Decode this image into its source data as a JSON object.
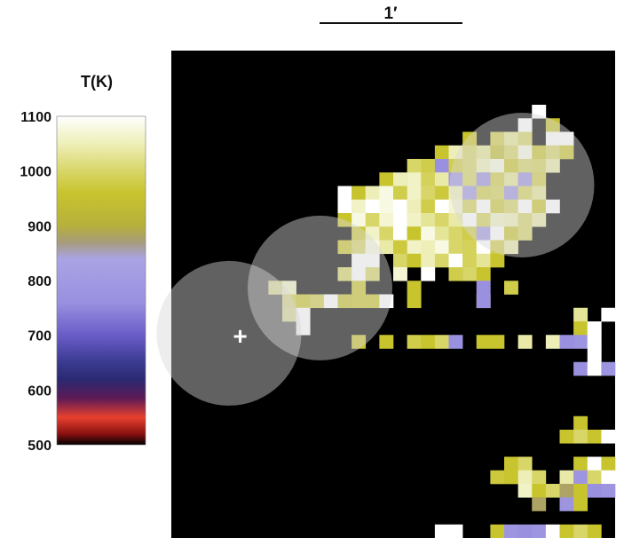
{
  "chart_data": {
    "type": "heatmap",
    "colorbar": {
      "title": "T(K)",
      "range": [
        500,
        1100
      ],
      "ticks": [
        500,
        600,
        700,
        800,
        900,
        1000,
        1100
      ],
      "stops": [
        {
          "value": 500,
          "color": "#000000"
        },
        {
          "value": 520,
          "color": "#8a1010"
        },
        {
          "value": 550,
          "color": "#e8402e"
        },
        {
          "value": 585,
          "color": "#5c1a55"
        },
        {
          "value": 620,
          "color": "#2a2a72"
        },
        {
          "value": 650,
          "color": "#3a3a90"
        },
        {
          "value": 700,
          "color": "#6a5cc8"
        },
        {
          "value": 760,
          "color": "#9a90e0"
        },
        {
          "value": 840,
          "color": "#a9a4e4"
        },
        {
          "value": 870,
          "color": "#a89c7a"
        },
        {
          "value": 900,
          "color": "#b6b03c"
        },
        {
          "value": 960,
          "color": "#c8c42e"
        },
        {
          "value": 1000,
          "color": "#d8d668"
        },
        {
          "value": 1050,
          "color": "#eeefb8"
        },
        {
          "value": 1100,
          "color": "#ffffff"
        }
      ]
    },
    "scale_bar": {
      "label": "1′"
    },
    "grid": {
      "cols": 32,
      "rows": 36
    },
    "background": "#000000",
    "cells": [
      [
        26,
        4,
        1100
      ],
      [
        25,
        5,
        1100
      ],
      [
        27,
        5,
        950
      ],
      [
        21,
        6,
        960
      ],
      [
        23,
        6,
        980
      ],
      [
        24,
        6,
        1030
      ],
      [
        25,
        6,
        1000
      ],
      [
        27,
        6,
        1100
      ],
      [
        28,
        6,
        1100
      ],
      [
        19,
        7,
        960
      ],
      [
        20,
        7,
        1050
      ],
      [
        21,
        7,
        1000
      ],
      [
        22,
        7,
        1030
      ],
      [
        23,
        7,
        940
      ],
      [
        24,
        7,
        1000
      ],
      [
        25,
        7,
        1080
      ],
      [
        26,
        7,
        960
      ],
      [
        27,
        7,
        1000
      ],
      [
        28,
        7,
        960
      ],
      [
        17,
        8,
        1000
      ],
      [
        18,
        8,
        980
      ],
      [
        19,
        8,
        760
      ],
      [
        20,
        8,
        980
      ],
      [
        21,
        8,
        1000
      ],
      [
        22,
        8,
        1050
      ],
      [
        23,
        8,
        1080
      ],
      [
        24,
        8,
        960
      ],
      [
        25,
        8,
        1000
      ],
      [
        26,
        8,
        990
      ],
      [
        27,
        8,
        1040
      ],
      [
        15,
        9,
        960
      ],
      [
        16,
        9,
        1050
      ],
      [
        17,
        9,
        1060
      ],
      [
        18,
        9,
        990
      ],
      [
        19,
        9,
        1040
      ],
      [
        20,
        9,
        780
      ],
      [
        21,
        9,
        1000
      ],
      [
        22,
        9,
        760
      ],
      [
        23,
        9,
        980
      ],
      [
        24,
        9,
        1030
      ],
      [
        25,
        9,
        760
      ],
      [
        26,
        9,
        980
      ],
      [
        12,
        10,
        1100
      ],
      [
        13,
        10,
        960
      ],
      [
        14,
        10,
        1050
      ],
      [
        15,
        10,
        1080
      ],
      [
        16,
        10,
        980
      ],
      [
        17,
        10,
        1060
      ],
      [
        18,
        10,
        1000
      ],
      [
        19,
        10,
        970
      ],
      [
        20,
        10,
        1050
      ],
      [
        21,
        10,
        800
      ],
      [
        22,
        10,
        980
      ],
      [
        23,
        10,
        990
      ],
      [
        24,
        10,
        780
      ],
      [
        25,
        10,
        990
      ],
      [
        26,
        10,
        1030
      ],
      [
        12,
        11,
        1100
      ],
      [
        13,
        11,
        1060
      ],
      [
        14,
        11,
        1100
      ],
      [
        15,
        11,
        1080
      ],
      [
        16,
        11,
        1100
      ],
      [
        17,
        11,
        1050
      ],
      [
        18,
        11,
        980
      ],
      [
        19,
        11,
        1100
      ],
      [
        20,
        11,
        1070
      ],
      [
        21,
        11,
        990
      ],
      [
        22,
        11,
        1100
      ],
      [
        23,
        11,
        970
      ],
      [
        24,
        11,
        1000
      ],
      [
        25,
        11,
        1100
      ],
      [
        26,
        11,
        960
      ],
      [
        27,
        11,
        1100
      ],
      [
        12,
        12,
        960
      ],
      [
        13,
        12,
        1080
      ],
      [
        14,
        12,
        1000
      ],
      [
        15,
        12,
        1070
      ],
      [
        16,
        12,
        1100
      ],
      [
        17,
        12,
        1060
      ],
      [
        18,
        12,
        1030
      ],
      [
        19,
        12,
        1000
      ],
      [
        20,
        12,
        1040
      ],
      [
        21,
        12,
        1100
      ],
      [
        22,
        12,
        990
      ],
      [
        23,
        12,
        1060
      ],
      [
        24,
        12,
        1050
      ],
      [
        25,
        12,
        1000
      ],
      [
        26,
        12,
        1040
      ],
      [
        13,
        13,
        970
      ],
      [
        14,
        13,
        1060
      ],
      [
        15,
        13,
        1000
      ],
      [
        16,
        13,
        1100
      ],
      [
        17,
        13,
        960
      ],
      [
        18,
        13,
        1080
      ],
      [
        19,
        13,
        1030
      ],
      [
        20,
        13,
        1000
      ],
      [
        21,
        13,
        980
      ],
      [
        22,
        13,
        800
      ],
      [
        23,
        13,
        1100
      ],
      [
        24,
        13,
        960
      ],
      [
        25,
        13,
        1000
      ],
      [
        12,
        14,
        960
      ],
      [
        13,
        14,
        1000
      ],
      [
        14,
        14,
        1080
      ],
      [
        15,
        14,
        1040
      ],
      [
        16,
        14,
        970
      ],
      [
        17,
        14,
        1060
      ],
      [
        18,
        14,
        1050
      ],
      [
        19,
        14,
        1080
      ],
      [
        20,
        14,
        1000
      ],
      [
        21,
        14,
        990
      ],
      [
        22,
        14,
        1100
      ],
      [
        23,
        14,
        980
      ],
      [
        24,
        14,
        1040
      ],
      [
        13,
        15,
        1100
      ],
      [
        14,
        15,
        1100
      ],
      [
        16,
        15,
        1000
      ],
      [
        17,
        15,
        960
      ],
      [
        18,
        15,
        1050
      ],
      [
        19,
        15,
        1000
      ],
      [
        20,
        15,
        1100
      ],
      [
        21,
        15,
        990
      ],
      [
        22,
        15,
        1030
      ],
      [
        23,
        15,
        960
      ],
      [
        12,
        16,
        1000
      ],
      [
        13,
        16,
        1100
      ],
      [
        14,
        16,
        1000
      ],
      [
        16,
        16,
        1070
      ],
      [
        18,
        16,
        1100
      ],
      [
        20,
        16,
        980
      ],
      [
        21,
        16,
        1000
      ],
      [
        22,
        16,
        960
      ],
      [
        7,
        17,
        1000
      ],
      [
        8,
        17,
        1060
      ],
      [
        13,
        17,
        960
      ],
      [
        17,
        17,
        960
      ],
      [
        22,
        17,
        760
      ],
      [
        24,
        17,
        980
      ],
      [
        8,
        18,
        980
      ],
      [
        9,
        18,
        960
      ],
      [
        10,
        18,
        980
      ],
      [
        11,
        18,
        1100
      ],
      [
        12,
        18,
        950
      ],
      [
        13,
        18,
        960
      ],
      [
        14,
        18,
        960
      ],
      [
        15,
        18,
        1100
      ],
      [
        17,
        18,
        960
      ],
      [
        22,
        18,
        960
      ],
      [
        22,
        18,
        760
      ],
      [
        8,
        19,
        1000
      ],
      [
        9,
        19,
        1100
      ],
      [
        29,
        19,
        1030
      ],
      [
        31,
        19,
        1100
      ],
      [
        9,
        20,
        1100
      ],
      [
        29,
        20,
        960
      ],
      [
        30,
        20,
        1100
      ],
      [
        13,
        21,
        950
      ],
      [
        15,
        21,
        960
      ],
      [
        17,
        21,
        980
      ],
      [
        18,
        21,
        960
      ],
      [
        19,
        21,
        1000
      ],
      [
        20,
        21,
        760
      ],
      [
        22,
        21,
        960
      ],
      [
        23,
        21,
        960
      ],
      [
        25,
        21,
        1040
      ],
      [
        27,
        21,
        1050
      ],
      [
        28,
        21,
        760
      ],
      [
        29,
        21,
        780
      ],
      [
        30,
        21,
        1100
      ],
      [
        30,
        22,
        1100
      ],
      [
        29,
        23,
        760
      ],
      [
        30,
        23,
        1100
      ],
      [
        31,
        23,
        780
      ],
      [
        29,
        27,
        960
      ],
      [
        28,
        28,
        960
      ],
      [
        29,
        28,
        1000
      ],
      [
        30,
        28,
        960
      ],
      [
        31,
        28,
        1100
      ],
      [
        24,
        30,
        960
      ],
      [
        25,
        30,
        1000
      ],
      [
        29,
        30,
        960
      ],
      [
        30,
        30,
        1100
      ],
      [
        31,
        30,
        960
      ],
      [
        23,
        31,
        970
      ],
      [
        24,
        31,
        960
      ],
      [
        25,
        31,
        1050
      ],
      [
        26,
        31,
        1000
      ],
      [
        28,
        31,
        1040
      ],
      [
        29,
        31,
        780
      ],
      [
        30,
        31,
        1000
      ],
      [
        31,
        31,
        1100
      ],
      [
        25,
        32,
        1060
      ],
      [
        26,
        32,
        960
      ],
      [
        27,
        32,
        1000
      ],
      [
        28,
        32,
        880
      ],
      [
        29,
        32,
        960
      ],
      [
        30,
        32,
        760
      ],
      [
        31,
        32,
        780
      ],
      [
        26,
        33,
        880
      ],
      [
        28,
        33,
        780
      ],
      [
        29,
        33,
        960
      ],
      [
        19,
        35,
        1100
      ],
      [
        20,
        35,
        1100
      ],
      [
        23,
        35,
        960
      ],
      [
        24,
        35,
        780
      ],
      [
        25,
        35,
        760
      ],
      [
        26,
        35,
        780
      ],
      [
        27,
        35,
        1100
      ],
      [
        28,
        35,
        960
      ],
      [
        29,
        35,
        1000
      ],
      [
        30,
        35,
        960
      ]
    ],
    "circles": [
      {
        "cx": 0.13,
        "cy": 0.58,
        "r": 0.163
      },
      {
        "cx": 0.335,
        "cy": 0.487,
        "r": 0.163
      },
      {
        "cx": 0.79,
        "cy": 0.276,
        "r": 0.163
      }
    ],
    "marker": {
      "symbol": "+",
      "x": 0.155,
      "y": 0.603
    }
  }
}
